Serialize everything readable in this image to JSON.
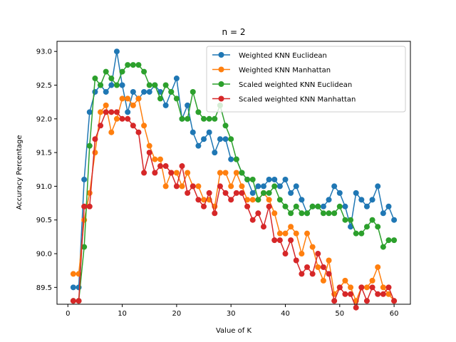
{
  "chart_data": {
    "type": "line",
    "title": "n = 2",
    "xlabel": "Value of K",
    "ylabel": "Accuracy Percentage",
    "xlim": [
      -2,
      63
    ],
    "ylim": [
      89.25,
      93.15
    ],
    "xticks": [
      0,
      10,
      20,
      30,
      40,
      50,
      60
    ],
    "yticks": [
      89.5,
      90.0,
      90.5,
      91.0,
      91.5,
      92.0,
      92.5,
      93.0
    ],
    "ytick_labels": [
      "89.5",
      "90.0",
      "90.5",
      "91.0",
      "91.5",
      "92.0",
      "92.5",
      "93.0"
    ],
    "grid": false,
    "legend_position": "top-right",
    "x": [
      1,
      2,
      3,
      4,
      5,
      6,
      7,
      8,
      9,
      10,
      11,
      12,
      13,
      14,
      15,
      16,
      17,
      18,
      19,
      20,
      21,
      22,
      23,
      24,
      25,
      26,
      27,
      28,
      29,
      30,
      31,
      32,
      33,
      34,
      35,
      36,
      37,
      38,
      39,
      40,
      41,
      42,
      43,
      44,
      45,
      46,
      47,
      48,
      49,
      50,
      51,
      52,
      53,
      54,
      55,
      56,
      57,
      58,
      59,
      60
    ],
    "series": [
      {
        "name": "Weighted KNN Euclidean",
        "color": "#1f77b4",
        "values": [
          89.5,
          89.5,
          91.1,
          92.1,
          92.4,
          92.5,
          92.4,
          92.5,
          93.0,
          92.5,
          92.1,
          92.4,
          92.3,
          92.4,
          92.4,
          92.5,
          92.4,
          92.2,
          92.4,
          92.6,
          92.0,
          92.2,
          91.8,
          91.6,
          91.7,
          91.8,
          91.5,
          91.7,
          91.7,
          91.4,
          91.4,
          91.2,
          91.1,
          90.9,
          91.0,
          91.0,
          91.1,
          91.1,
          91.0,
          91.1,
          90.9,
          91.0,
          90.8,
          90.6,
          90.7,
          90.7,
          90.7,
          90.8,
          91.0,
          90.9,
          90.7,
          90.4,
          90.9,
          90.8,
          90.7,
          90.8,
          91.0,
          90.6,
          90.7,
          90.5
        ]
      },
      {
        "name": "Weighted KNN Manhattan",
        "color": "#ff7f0e",
        "values": [
          89.7,
          89.7,
          90.5,
          90.9,
          91.5,
          92.1,
          92.2,
          91.8,
          92.0,
          92.3,
          92.3,
          92.2,
          92.3,
          91.9,
          91.6,
          91.4,
          91.4,
          91.0,
          91.2,
          91.2,
          91.0,
          91.2,
          91.0,
          91.0,
          90.8,
          90.8,
          90.7,
          91.2,
          91.2,
          91.0,
          91.2,
          91.0,
          90.8,
          90.8,
          90.8,
          90.9,
          90.8,
          90.6,
          90.3,
          90.3,
          90.4,
          90.3,
          90.0,
          90.3,
          90.1,
          89.8,
          89.6,
          89.9,
          89.4,
          89.5,
          89.6,
          89.5,
          89.3,
          89.5,
          89.5,
          89.6,
          89.8,
          89.5,
          89.4,
          89.3
        ]
      },
      {
        "name": "Scaled weighted KNN Euclidean",
        "color": "#2ca02c",
        "values": [
          89.3,
          89.3,
          90.1,
          91.6,
          92.6,
          92.5,
          92.7,
          92.6,
          92.5,
          92.7,
          92.8,
          92.8,
          92.8,
          92.7,
          92.5,
          92.5,
          92.3,
          92.5,
          92.4,
          92.3,
          92.0,
          92.0,
          92.4,
          92.1,
          92.0,
          92.0,
          92.0,
          92.2,
          91.9,
          91.7,
          91.4,
          91.2,
          91.1,
          91.1,
          90.8,
          90.9,
          90.9,
          91.0,
          90.8,
          90.7,
          90.6,
          90.7,
          90.6,
          90.6,
          90.7,
          90.7,
          90.6,
          90.6,
          90.6,
          90.7,
          90.5,
          90.5,
          90.3,
          90.3,
          90.4,
          90.5,
          90.4,
          90.1,
          90.2,
          90.2
        ]
      },
      {
        "name": "Scaled weighted KNN Manhattan",
        "color": "#d62728",
        "values": [
          89.3,
          89.3,
          90.7,
          90.7,
          91.7,
          91.9,
          92.1,
          92.1,
          92.1,
          92.0,
          92.0,
          91.9,
          91.8,
          91.2,
          91.5,
          91.2,
          91.3,
          91.3,
          91.2,
          91.0,
          91.3,
          90.9,
          91.0,
          90.8,
          90.7,
          90.9,
          90.6,
          91.0,
          90.9,
          90.8,
          90.9,
          90.9,
          90.7,
          90.5,
          90.6,
          90.4,
          90.7,
          90.2,
          90.2,
          90.0,
          90.2,
          89.9,
          89.7,
          89.8,
          89.7,
          90.0,
          89.8,
          89.7,
          89.3,
          89.5,
          89.4,
          89.4,
          89.2,
          89.5,
          89.3,
          89.5,
          89.4,
          89.4,
          89.5,
          89.3
        ]
      }
    ]
  }
}
